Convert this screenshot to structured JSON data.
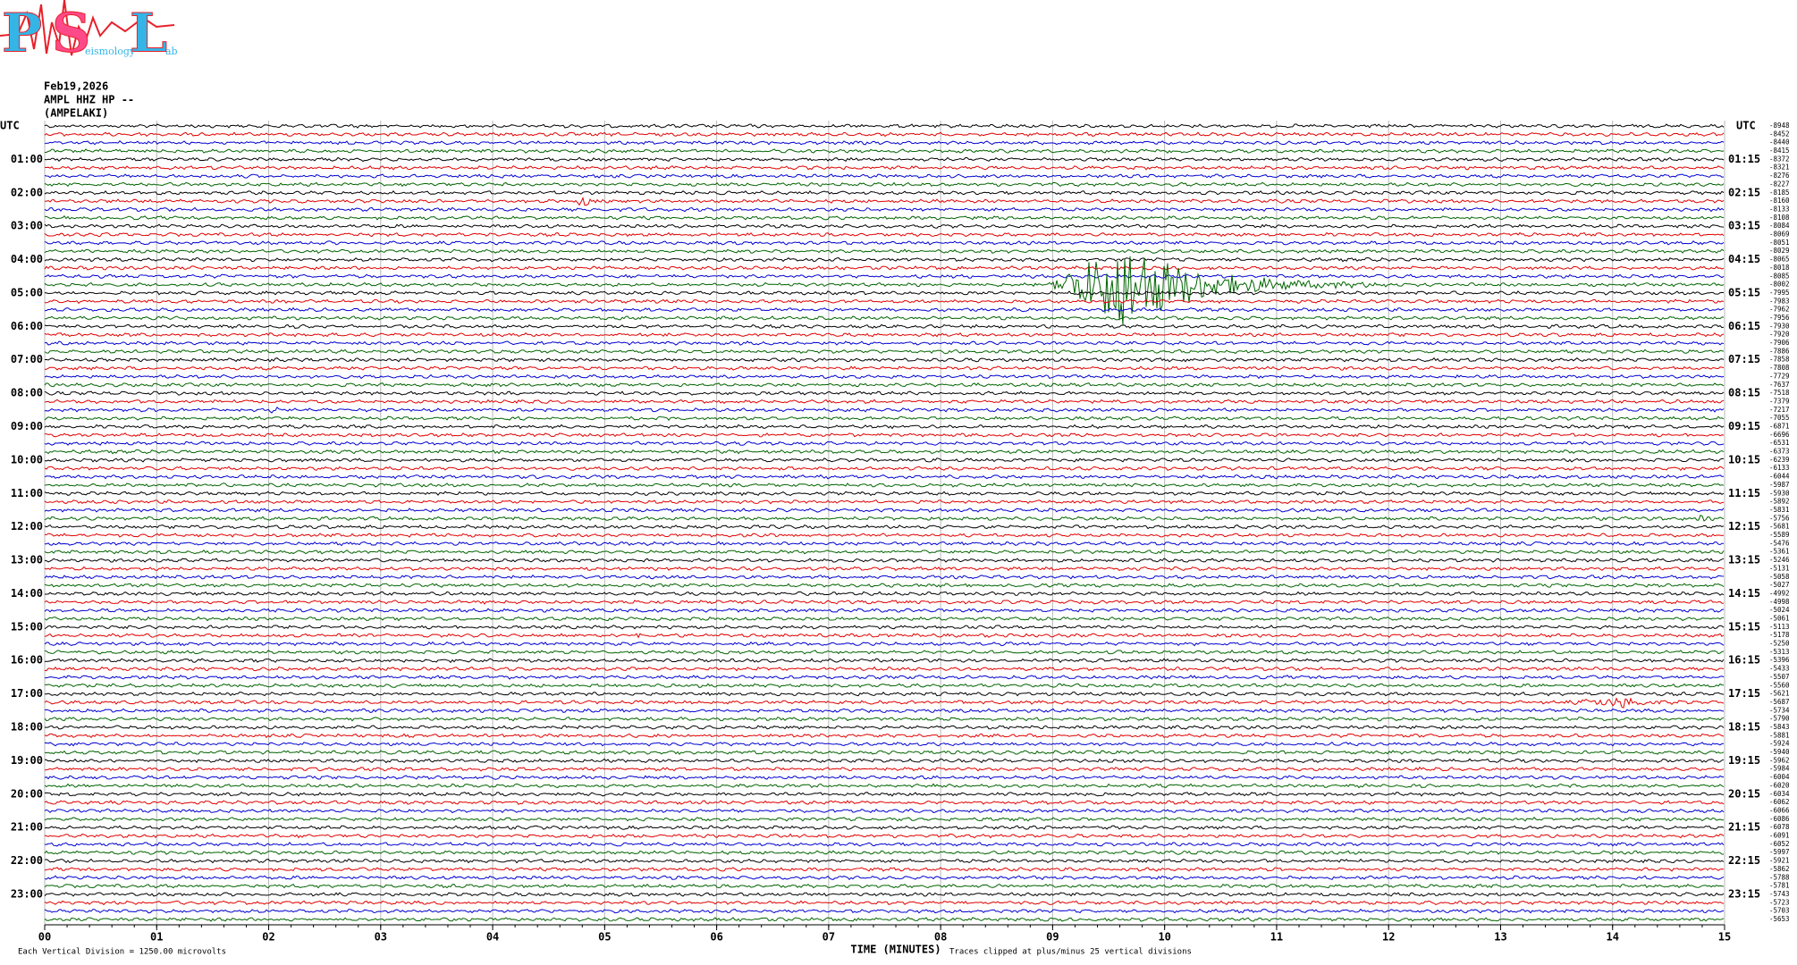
{
  "header": {
    "logo": {
      "letters": [
        "P",
        "S",
        "L"
      ],
      "words": [
        "eismology",
        "ab"
      ]
    },
    "date": "Feb19,2026",
    "station": "AMPL HHZ HP --",
    "location": "(AMPELAKI)"
  },
  "left_axis": {
    "title": "UTC",
    "labels": [
      "01:00",
      "02:00",
      "03:00",
      "04:00",
      "05:00",
      "06:00",
      "07:00",
      "08:00",
      "09:00",
      "10:00",
      "11:00",
      "12:00",
      "13:00",
      "14:00",
      "15:00",
      "16:00",
      "17:00",
      "18:00",
      "19:00",
      "20:00",
      "21:00",
      "22:00",
      "23:00"
    ]
  },
  "right_axis": {
    "title": "UTC",
    "labels": [
      "01:15",
      "02:15",
      "03:15",
      "04:15",
      "05:15",
      "06:15",
      "07:15",
      "08:15",
      "09:15",
      "10:15",
      "11:15",
      "12:15",
      "13:15",
      "14:15",
      "15:15",
      "16:15",
      "17:15",
      "18:15",
      "19:15",
      "20:15",
      "21:15",
      "22:15",
      "23:15"
    ],
    "row_values": [
      -8948,
      -8452,
      -8440,
      -8415,
      -8372,
      -8321,
      -8276,
      -8227,
      -8185,
      -8160,
      -8133,
      -8108,
      -8084,
      -8069,
      -8051,
      -8029,
      -8065,
      -8018,
      -8085,
      -8002,
      -7995,
      -7983,
      -7962,
      -7956,
      -7930,
      -7920,
      -7906,
      -7886,
      -7858,
      -7808,
      -7729,
      -7637,
      -7518,
      -7379,
      -7217,
      -7055,
      -6871,
      -6696,
      -6531,
      -6373,
      -6239,
      -6133,
      -6044,
      -5987,
      -5930,
      -5892,
      -5831,
      -5756,
      -5681,
      -5589,
      -5476,
      -5361,
      -5246,
      -5131,
      -5058,
      -5027,
      -4992,
      -4998,
      -5024,
      -5061,
      -5113,
      -5178,
      -5250,
      -5313,
      -5396,
      -5433,
      -5507,
      -5560,
      -5621,
      -5687,
      -5734,
      -5790,
      -5843,
      -5881,
      -5924,
      -5940,
      -5962,
      -5984,
      -6004,
      -6020,
      -6034,
      -6062,
      -6066,
      -6086,
      -6078,
      -6091,
      -6052,
      -5997,
      -5921,
      -5862,
      -5788,
      -5781,
      -5743,
      -5723,
      -5703,
      -5653
    ]
  },
  "x_axis": {
    "title": "TIME (MINUTES)",
    "ticks": [
      "00",
      "01",
      "02",
      "03",
      "04",
      "05",
      "06",
      "07",
      "08",
      "09",
      "10",
      "11",
      "12",
      "13",
      "14",
      "15"
    ]
  },
  "footer": {
    "scale_note": "Each Vertical Division = 1250.00 microvolts",
    "clip_note": "Traces clipped at plus/minus 25 vertical divisions"
  }
}
